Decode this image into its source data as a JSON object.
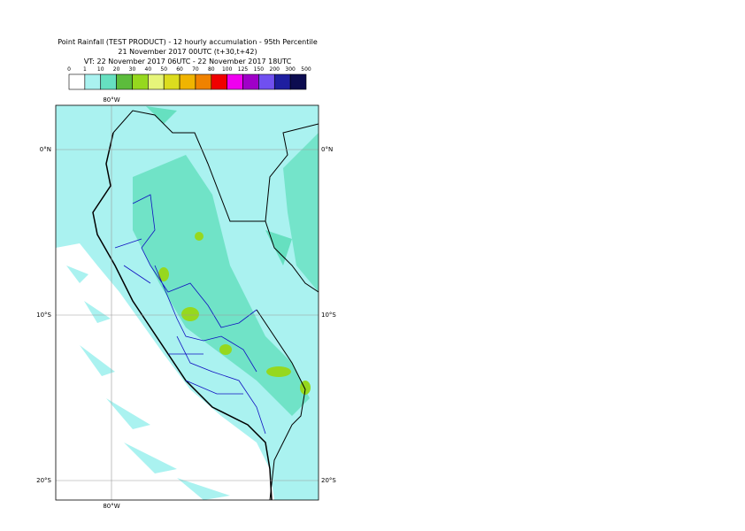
{
  "header": {
    "title": "Point Rainfall (TEST PRODUCT) - 12 hourly accumulation - 95th Percentile",
    "run": "21 November 2017 00UTC (t+30,t+42)",
    "valid": "VT: 22 November 2017 06UTC - 22 November 2017 18UTC"
  },
  "legend": {
    "levels": [
      0,
      1,
      10,
      20,
      30,
      40,
      50,
      60,
      70,
      80,
      100,
      125,
      150,
      200,
      300,
      500
    ],
    "colors": [
      "#ffffff",
      "#aaf2f0",
      "#66e0c0",
      "#5cbc3c",
      "#96d81e",
      "#e6f57a",
      "#dcdc1e",
      "#f0b400",
      "#f08200",
      "#f00000",
      "#f000f0",
      "#a000c8",
      "#7050f0",
      "#1e1ea0",
      "#0c0c50"
    ]
  },
  "map": {
    "lat_labels": [
      "0°N",
      "10°S",
      "20°S"
    ],
    "lon_labels_top": [
      "80°W"
    ],
    "lon_labels_bottom": [
      "80°W"
    ]
  }
}
